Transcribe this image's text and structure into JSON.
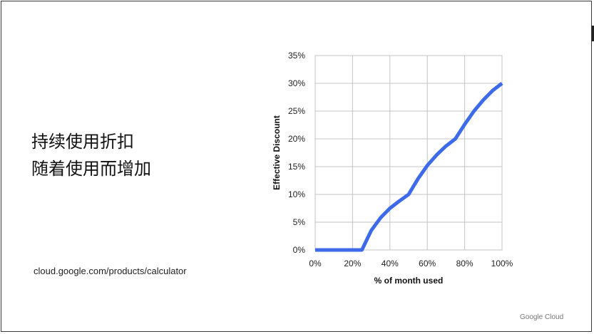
{
  "slide": {
    "title_lines": [
      "持续使用折扣",
      "随着使用而增加"
    ],
    "url": "cloud.google.com/products/calculator",
    "brand": "Google Cloud"
  },
  "chart_data": {
    "type": "line",
    "xlabel": "% of month used",
    "ylabel": "Effective Discount",
    "x_ticks": [
      "0%",
      "20%",
      "40%",
      "60%",
      "80%",
      "100%"
    ],
    "y_ticks": [
      "0%",
      "5%",
      "10%",
      "15%",
      "20%",
      "25%",
      "30%",
      "35%"
    ],
    "xlim": [
      0,
      100
    ],
    "ylim": [
      0,
      35
    ],
    "grid": true,
    "series": [
      {
        "color": "#3d6ae8",
        "x": [
          0,
          25,
          30,
          35,
          40,
          45,
          50,
          55,
          60,
          65,
          70,
          75,
          80,
          85,
          90,
          95,
          100
        ],
        "y": [
          0,
          0,
          3.5,
          5.8,
          7.5,
          8.8,
          10,
          12.8,
          15.2,
          17.1,
          18.7,
          20,
          22.6,
          25,
          27,
          28.7,
          30
        ]
      }
    ]
  }
}
